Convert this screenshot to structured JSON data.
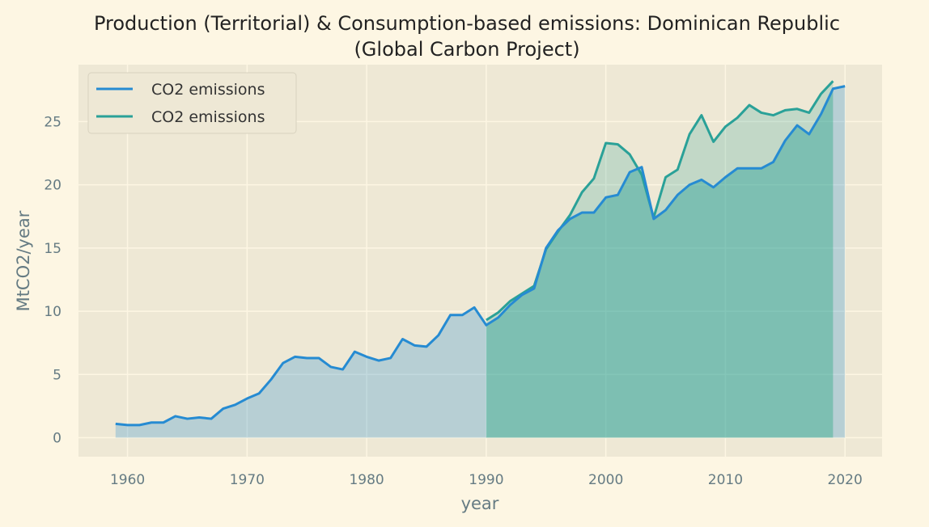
{
  "chart_data": {
    "type": "area",
    "title_line1": "Production (Territorial) & Consumption-based emissions: Dominican Republic",
    "title_line2": "(Global Carbon Project)",
    "xlabel": "year",
    "ylabel": "MtCO2/year",
    "xlim": [
      1955.9,
      2023.1
    ],
    "ylim": [
      -1.5,
      29.5
    ],
    "x_ticks": [
      1960,
      1970,
      1980,
      1990,
      2000,
      2010,
      2020
    ],
    "y_ticks": [
      0,
      5,
      10,
      15,
      20,
      25
    ],
    "grid": true,
    "legend_position": "top-left",
    "colors": {
      "background": "#fdf6e3",
      "plot_background": "#eee8d5",
      "grid": "#fdf6e3",
      "production": "#268bd2",
      "consumption": "#2aa198",
      "tick_text": "#657b83"
    },
    "series": [
      {
        "name": "CO2 emissions",
        "color": "#268bd2",
        "x": [
          1959,
          1960,
          1961,
          1962,
          1963,
          1964,
          1965,
          1966,
          1967,
          1968,
          1969,
          1970,
          1971,
          1972,
          1973,
          1974,
          1975,
          1976,
          1977,
          1978,
          1979,
          1980,
          1981,
          1982,
          1983,
          1984,
          1985,
          1986,
          1987,
          1988,
          1989,
          1990,
          1991,
          1992,
          1993,
          1994,
          1995,
          1996,
          1997,
          1998,
          1999,
          2000,
          2001,
          2002,
          2003,
          2004,
          2005,
          2006,
          2007,
          2008,
          2009,
          2010,
          2011,
          2012,
          2013,
          2014,
          2015,
          2016,
          2017,
          2018,
          2019,
          2020
        ],
        "values": [
          1.1,
          1.0,
          1.0,
          1.2,
          1.2,
          1.7,
          1.5,
          1.6,
          1.5,
          2.3,
          2.6,
          3.1,
          3.5,
          4.6,
          5.9,
          6.4,
          6.3,
          6.3,
          5.6,
          5.4,
          6.8,
          6.4,
          6.1,
          6.3,
          7.8,
          7.3,
          7.2,
          8.1,
          9.7,
          9.7,
          10.3,
          8.9,
          9.5,
          10.5,
          11.3,
          11.8,
          15.0,
          16.4,
          17.3,
          17.8,
          17.8,
          19.0,
          19.2,
          21.0,
          21.4,
          17.3,
          18.0,
          19.2,
          20.0,
          20.4,
          19.8,
          20.6,
          21.3,
          21.3,
          21.3,
          21.8,
          23.5,
          24.7,
          24.0,
          25.6,
          27.6,
          27.8
        ]
      },
      {
        "name": "CO2 emissions",
        "color": "#2aa198",
        "x": [
          1990,
          1991,
          1992,
          1993,
          1994,
          1995,
          1996,
          1997,
          1998,
          1999,
          2000,
          2001,
          2002,
          2003,
          2004,
          2005,
          2006,
          2007,
          2008,
          2009,
          2010,
          2011,
          2012,
          2013,
          2014,
          2015,
          2016,
          2017,
          2018,
          2019
        ],
        "values": [
          9.3,
          9.9,
          10.8,
          11.4,
          12.0,
          14.9,
          16.3,
          17.6,
          19.4,
          20.5,
          23.3,
          23.2,
          22.4,
          20.8,
          17.4,
          20.6,
          21.2,
          24.0,
          25.5,
          23.4,
          24.6,
          25.3,
          26.3,
          25.7,
          25.5,
          25.9,
          26.0,
          25.7,
          27.2,
          28.2
        ]
      }
    ]
  }
}
